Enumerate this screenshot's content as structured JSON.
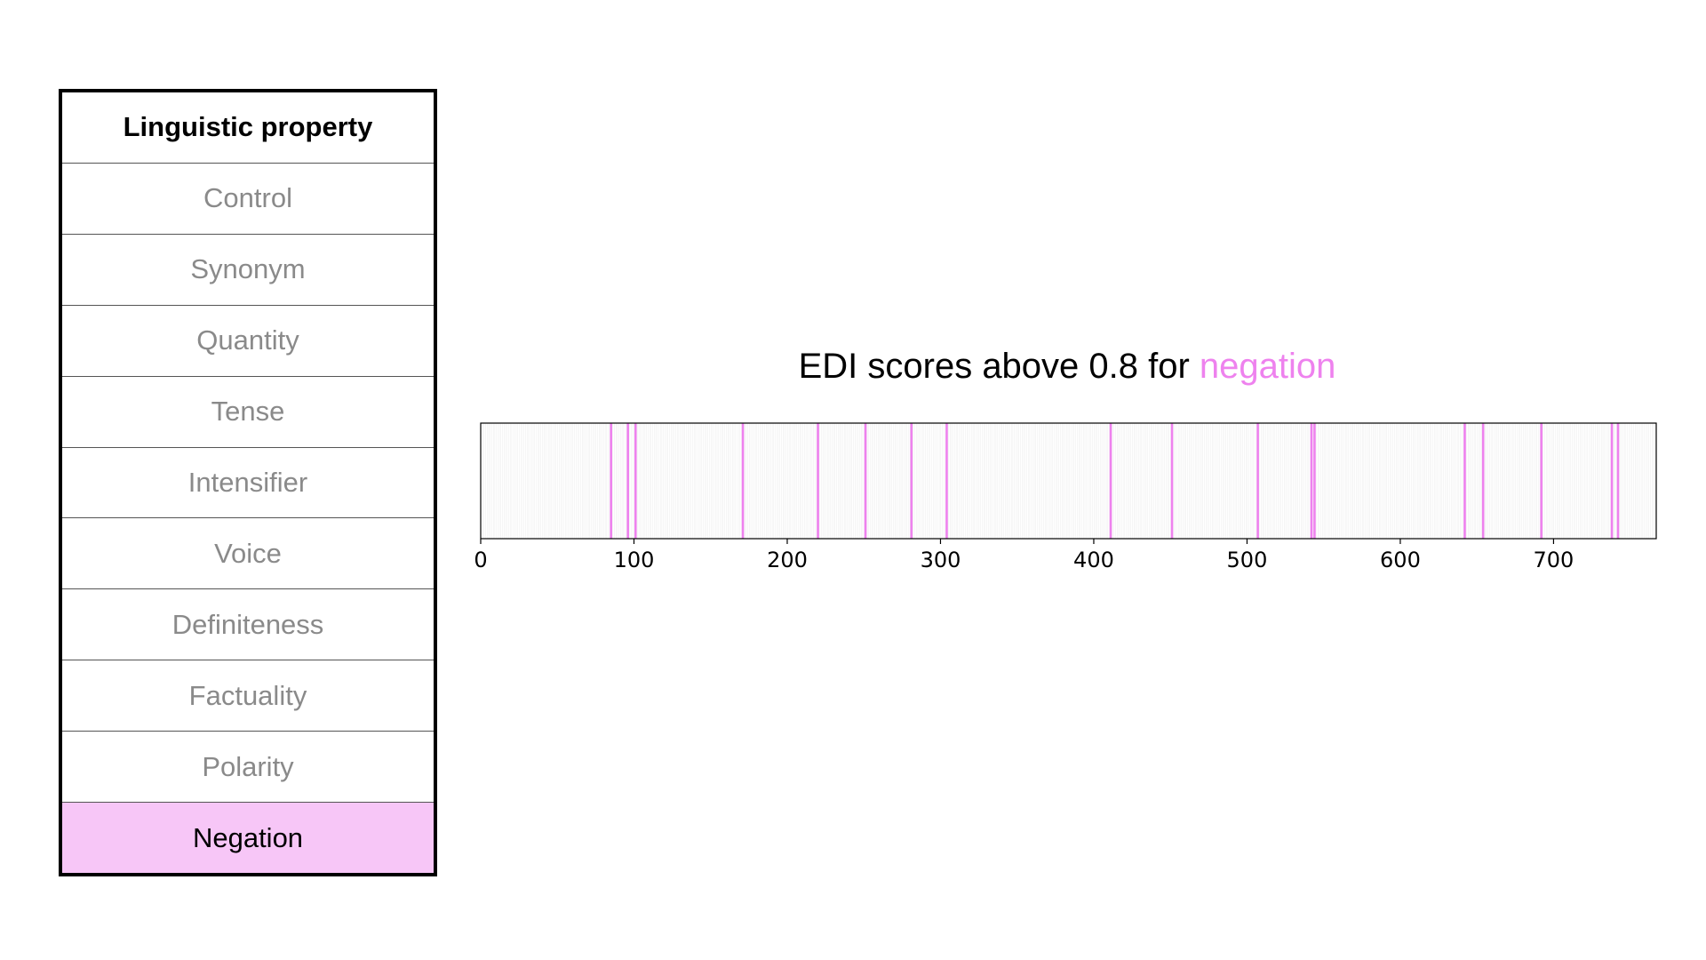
{
  "table": {
    "header": "Linguistic property",
    "rows": [
      {
        "label": "Control",
        "selected": false
      },
      {
        "label": "Synonym",
        "selected": false
      },
      {
        "label": "Quantity",
        "selected": false
      },
      {
        "label": "Tense",
        "selected": false
      },
      {
        "label": "Intensifier",
        "selected": false
      },
      {
        "label": "Voice",
        "selected": false
      },
      {
        "label": "Definiteness",
        "selected": false
      },
      {
        "label": "Factuality",
        "selected": false
      },
      {
        "label": "Polarity",
        "selected": false
      },
      {
        "label": "Negation",
        "selected": true
      }
    ]
  },
  "colors": {
    "highlight": "#ee82ee",
    "selected_row_bg": "#f7c6f7",
    "inactive_text": "#8a8a8a",
    "background_bars": "#e6e6e6"
  },
  "chart_data": {
    "type": "bar",
    "title_prefix": "EDI scores above 0.8 for ",
    "title_highlight": "negation",
    "xlim": [
      0,
      767
    ],
    "xticks": [
      0,
      100,
      200,
      300,
      400,
      500,
      600,
      700
    ],
    "grid": false,
    "highlighted_dimensions": [
      85,
      96,
      101,
      171,
      220,
      251,
      281,
      304,
      411,
      451,
      507,
      542,
      544,
      642,
      654,
      692,
      738,
      742
    ]
  }
}
